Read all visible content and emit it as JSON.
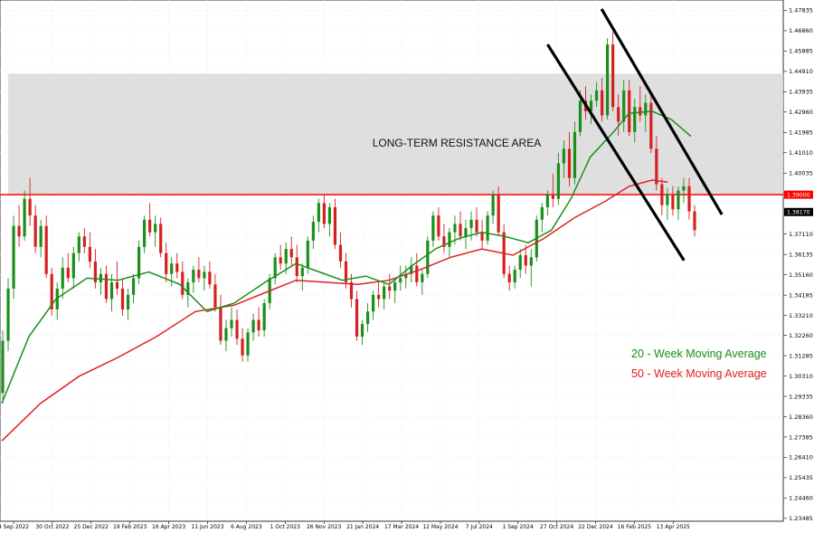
{
  "chart_data": {
    "type": "candlestick",
    "title": "",
    "xlabel": "",
    "ylabel": "",
    "ylim": [
      1.2335,
      1.4833
    ],
    "grid": true,
    "y_ticks": [
      "1.47835",
      "1.46860",
      "1.45885",
      "1.44910",
      "1.43935",
      "1.42960",
      "1.41985",
      "1.41010",
      "1.40035",
      "1.39060",
      "1.38085",
      "1.37110",
      "1.36135",
      "1.35160",
      "1.34185",
      "1.33210",
      "1.32260",
      "1.31285",
      "1.30310",
      "1.29335",
      "1.28360",
      "1.27385",
      "1.26410",
      "1.25435",
      "1.24460",
      "1.23485"
    ],
    "x_ticks": [
      "4 Sep 2022",
      "30 Oct 2022",
      "25 Dec 2022",
      "19 Feb 2023",
      "16 Apr 2023",
      "11 Jun 2023",
      "6 Aug 2023",
      "1 Oct 2023",
      "26 Nov 2023",
      "21 Jan 2024",
      "17 Mar 2024",
      "12 May 2024",
      "7 Jul 2024",
      "1 Sep 2024",
      "27 Oct 2024",
      "22 Dec 2024",
      "16 Feb 2025",
      "13 Apr 2025"
    ],
    "price_tags": [
      {
        "label": "1.39000",
        "value": 1.39,
        "color": "#ff0000"
      },
      {
        "label": "1.38170",
        "value": 1.3817,
        "color": "#000000"
      }
    ],
    "resistance_zone": {
      "label": "LONG-TERM RESISTANCE AREA",
      "low": 1.39,
      "high": 1.448
    },
    "resistance_line": 1.39,
    "channel": {
      "upper": [
        {
          "x": 0.7747,
          "y": 1.479
        },
        {
          "x": 0.9301,
          "y": 1.3805
        }
      ],
      "lower": [
        {
          "x": 0.7049,
          "y": 1.462
        },
        {
          "x": 0.8811,
          "y": 1.3585
        }
      ]
    },
    "series": [
      {
        "name": "20 - Week Moving Average",
        "color": "#1a8f1a"
      },
      {
        "name": "50 - Week Moving Average",
        "color": "#e02020"
      }
    ],
    "ma20": [
      [
        0.0,
        1.29
      ],
      [
        0.035,
        1.322
      ],
      [
        0.07,
        1.34
      ],
      [
        0.11,
        1.35
      ],
      [
        0.15,
        1.349
      ],
      [
        0.19,
        1.353
      ],
      [
        0.23,
        1.347
      ],
      [
        0.265,
        1.334
      ],
      [
        0.3,
        1.338
      ],
      [
        0.34,
        1.348
      ],
      [
        0.38,
        1.357
      ],
      [
        0.41,
        1.353
      ],
      [
        0.44,
        1.349
      ],
      [
        0.47,
        1.351
      ],
      [
        0.5,
        1.347
      ],
      [
        0.53,
        1.356
      ],
      [
        0.56,
        1.364
      ],
      [
        0.59,
        1.369
      ],
      [
        0.62,
        1.372
      ],
      [
        0.65,
        1.37
      ],
      [
        0.68,
        1.367
      ],
      [
        0.71,
        1.373
      ],
      [
        0.735,
        1.388
      ],
      [
        0.76,
        1.408
      ],
      [
        0.79,
        1.42
      ],
      [
        0.81,
        1.429
      ],
      [
        0.84,
        1.43
      ],
      [
        0.865,
        1.426
      ],
      [
        0.89,
        1.418
      ]
    ],
    "ma50": [
      [
        0.0,
        1.272
      ],
      [
        0.05,
        1.29
      ],
      [
        0.1,
        1.303
      ],
      [
        0.15,
        1.312
      ],
      [
        0.2,
        1.322
      ],
      [
        0.25,
        1.334
      ],
      [
        0.3,
        1.337
      ],
      [
        0.34,
        1.343
      ],
      [
        0.38,
        1.349
      ],
      [
        0.42,
        1.348
      ],
      [
        0.46,
        1.347
      ],
      [
        0.5,
        1.349
      ],
      [
        0.54,
        1.354
      ],
      [
        0.58,
        1.36
      ],
      [
        0.62,
        1.364
      ],
      [
        0.66,
        1.361
      ],
      [
        0.7,
        1.369
      ],
      [
        0.74,
        1.379
      ],
      [
        0.78,
        1.387
      ],
      [
        0.81,
        1.394
      ],
      [
        0.84,
        1.397
      ],
      [
        0.86,
        1.396
      ]
    ],
    "candles": [
      [
        1.295,
        1.325,
        1.29,
        1.32
      ],
      [
        1.32,
        1.35,
        1.315,
        1.345
      ],
      [
        1.345,
        1.38,
        1.34,
        1.375
      ],
      [
        1.375,
        1.385,
        1.365,
        1.37
      ],
      [
        1.37,
        1.392,
        1.368,
        1.388
      ],
      [
        1.388,
        1.398,
        1.375,
        1.38
      ],
      [
        1.38,
        1.385,
        1.362,
        1.365
      ],
      [
        1.365,
        1.378,
        1.36,
        1.375
      ],
      [
        1.375,
        1.38,
        1.35,
        1.352
      ],
      [
        1.352,
        1.355,
        1.332,
        1.335
      ],
      [
        1.335,
        1.348,
        1.33,
        1.345
      ],
      [
        1.345,
        1.36,
        1.34,
        1.355
      ],
      [
        1.355,
        1.362,
        1.348,
        1.35
      ],
      [
        1.35,
        1.365,
        1.345,
        1.362
      ],
      [
        1.362,
        1.372,
        1.358,
        1.37
      ],
      [
        1.37,
        1.374,
        1.362,
        1.365
      ],
      [
        1.365,
        1.372,
        1.355,
        1.358
      ],
      [
        1.358,
        1.364,
        1.345,
        1.348
      ],
      [
        1.348,
        1.355,
        1.342,
        1.352
      ],
      [
        1.352,
        1.356,
        1.338,
        1.34
      ],
      [
        1.34,
        1.352,
        1.334,
        1.348
      ],
      [
        1.348,
        1.358,
        1.342,
        1.345
      ],
      [
        1.345,
        1.35,
        1.332,
        1.335
      ],
      [
        1.335,
        1.345,
        1.33,
        1.342
      ],
      [
        1.342,
        1.352,
        1.338,
        1.35
      ],
      [
        1.35,
        1.368,
        1.347,
        1.365
      ],
      [
        1.365,
        1.38,
        1.362,
        1.378
      ],
      [
        1.378,
        1.386,
        1.37,
        1.372
      ],
      [
        1.372,
        1.38,
        1.365,
        1.376
      ],
      [
        1.376,
        1.379,
        1.36,
        1.362
      ],
      [
        1.362,
        1.367,
        1.348,
        1.352
      ],
      [
        1.352,
        1.36,
        1.346,
        1.357
      ],
      [
        1.357,
        1.362,
        1.35,
        1.353
      ],
      [
        1.353,
        1.358,
        1.34,
        1.342
      ],
      [
        1.342,
        1.35,
        1.336,
        1.348
      ],
      [
        1.348,
        1.356,
        1.343,
        1.354
      ],
      [
        1.354,
        1.36,
        1.348,
        1.35
      ],
      [
        1.35,
        1.356,
        1.344,
        1.353
      ],
      [
        1.353,
        1.358,
        1.345,
        1.347
      ],
      [
        1.347,
        1.352,
        1.334,
        1.336
      ],
      [
        1.336,
        1.342,
        1.318,
        1.32
      ],
      [
        1.32,
        1.33,
        1.315,
        1.326
      ],
      [
        1.326,
        1.336,
        1.322,
        1.33
      ],
      [
        1.33,
        1.335,
        1.318,
        1.321
      ],
      [
        1.321,
        1.326,
        1.31,
        1.313
      ],
      [
        1.313,
        1.326,
        1.31,
        1.324
      ],
      [
        1.324,
        1.333,
        1.32,
        1.33
      ],
      [
        1.33,
        1.336,
        1.322,
        1.325
      ],
      [
        1.325,
        1.34,
        1.322,
        1.338
      ],
      [
        1.338,
        1.352,
        1.335,
        1.35
      ],
      [
        1.35,
        1.362,
        1.347,
        1.36
      ],
      [
        1.36,
        1.366,
        1.354,
        1.357
      ],
      [
        1.357,
        1.367,
        1.352,
        1.364
      ],
      [
        1.364,
        1.37,
        1.356,
        1.36
      ],
      [
        1.36,
        1.366,
        1.348,
        1.351
      ],
      [
        1.351,
        1.357,
        1.344,
        1.355
      ],
      [
        1.355,
        1.37,
        1.352,
        1.368
      ],
      [
        1.368,
        1.38,
        1.364,
        1.377
      ],
      [
        1.377,
        1.388,
        1.372,
        1.386
      ],
      [
        1.386,
        1.39,
        1.374,
        1.376
      ],
      [
        1.376,
        1.386,
        1.37,
        1.384
      ],
      [
        1.384,
        1.388,
        1.364,
        1.366
      ],
      [
        1.366,
        1.372,
        1.355,
        1.358
      ],
      [
        1.358,
        1.362,
        1.345,
        1.348
      ],
      [
        1.348,
        1.352,
        1.336,
        1.34
      ],
      [
        1.34,
        1.344,
        1.32,
        1.322
      ],
      [
        1.322,
        1.33,
        1.318,
        1.328
      ],
      [
        1.328,
        1.338,
        1.324,
        1.334
      ],
      [
        1.334,
        1.344,
        1.33,
        1.342
      ],
      [
        1.342,
        1.348,
        1.336,
        1.34
      ],
      [
        1.34,
        1.348,
        1.335,
        1.346
      ],
      [
        1.346,
        1.352,
        1.34,
        1.344
      ],
      [
        1.344,
        1.35,
        1.338,
        1.348
      ],
      [
        1.348,
        1.356,
        1.344,
        1.35
      ],
      [
        1.35,
        1.356,
        1.345,
        1.352
      ],
      [
        1.352,
        1.36,
        1.348,
        1.356
      ],
      [
        1.356,
        1.362,
        1.346,
        1.348
      ],
      [
        1.348,
        1.354,
        1.342,
        1.352
      ],
      [
        1.352,
        1.37,
        1.35,
        1.368
      ],
      [
        1.368,
        1.382,
        1.365,
        1.38
      ],
      [
        1.38,
        1.384,
        1.368,
        1.37
      ],
      [
        1.37,
        1.376,
        1.362,
        1.365
      ],
      [
        1.365,
        1.374,
        1.36,
        1.372
      ],
      [
        1.372,
        1.38,
        1.366,
        1.376
      ],
      [
        1.376,
        1.382,
        1.368,
        1.37
      ],
      [
        1.37,
        1.378,
        1.364,
        1.374
      ],
      [
        1.374,
        1.382,
        1.368,
        1.378
      ],
      [
        1.378,
        1.384,
        1.37,
        1.372
      ],
      [
        1.372,
        1.378,
        1.364,
        1.368
      ],
      [
        1.368,
        1.382,
        1.366,
        1.38
      ],
      [
        1.38,
        1.392,
        1.376,
        1.39
      ],
      [
        1.39,
        1.394,
        1.37,
        1.372
      ],
      [
        1.372,
        1.376,
        1.35,
        1.352
      ],
      [
        1.352,
        1.356,
        1.344,
        1.348
      ],
      [
        1.348,
        1.356,
        1.345,
        1.354
      ],
      [
        1.354,
        1.364,
        1.35,
        1.361
      ],
      [
        1.361,
        1.366,
        1.352,
        1.356
      ],
      [
        1.356,
        1.364,
        1.346,
        1.36
      ],
      [
        1.36,
        1.38,
        1.358,
        1.378
      ],
      [
        1.378,
        1.386,
        1.372,
        1.384
      ],
      [
        1.384,
        1.392,
        1.38,
        1.39
      ],
      [
        1.39,
        1.4,
        1.384,
        1.388
      ],
      [
        1.388,
        1.41,
        1.385,
        1.405
      ],
      [
        1.405,
        1.416,
        1.398,
        1.412
      ],
      [
        1.412,
        1.42,
        1.394,
        1.398
      ],
      [
        1.398,
        1.425,
        1.395,
        1.42
      ],
      [
        1.42,
        1.44,
        1.418,
        1.435
      ],
      [
        1.435,
        1.442,
        1.426,
        1.43
      ],
      [
        1.43,
        1.438,
        1.424,
        1.435
      ],
      [
        1.435,
        1.444,
        1.432,
        1.44
      ],
      [
        1.44,
        1.446,
        1.425,
        1.428
      ],
      [
        1.428,
        1.465,
        1.426,
        1.462
      ],
      [
        1.462,
        1.468,
        1.43,
        1.432
      ],
      [
        1.432,
        1.438,
        1.418,
        1.425
      ],
      [
        1.425,
        1.445,
        1.42,
        1.44
      ],
      [
        1.44,
        1.445,
        1.418,
        1.42
      ],
      [
        1.42,
        1.436,
        1.415,
        1.432
      ],
      [
        1.432,
        1.442,
        1.425,
        1.428
      ],
      [
        1.428,
        1.438,
        1.42,
        1.434
      ],
      [
        1.434,
        1.438,
        1.41,
        1.412
      ],
      [
        1.412,
        1.418,
        1.392,
        1.395
      ],
      [
        1.395,
        1.398,
        1.38,
        1.385
      ],
      [
        1.385,
        1.393,
        1.378,
        1.39
      ],
      [
        1.39,
        1.394,
        1.38,
        1.383
      ],
      [
        1.383,
        1.394,
        1.378,
        1.392
      ],
      [
        1.392,
        1.398,
        1.386,
        1.394
      ],
      [
        1.394,
        1.398,
        1.378,
        1.382
      ],
      [
        1.382,
        1.385,
        1.37,
        1.373
      ]
    ]
  }
}
